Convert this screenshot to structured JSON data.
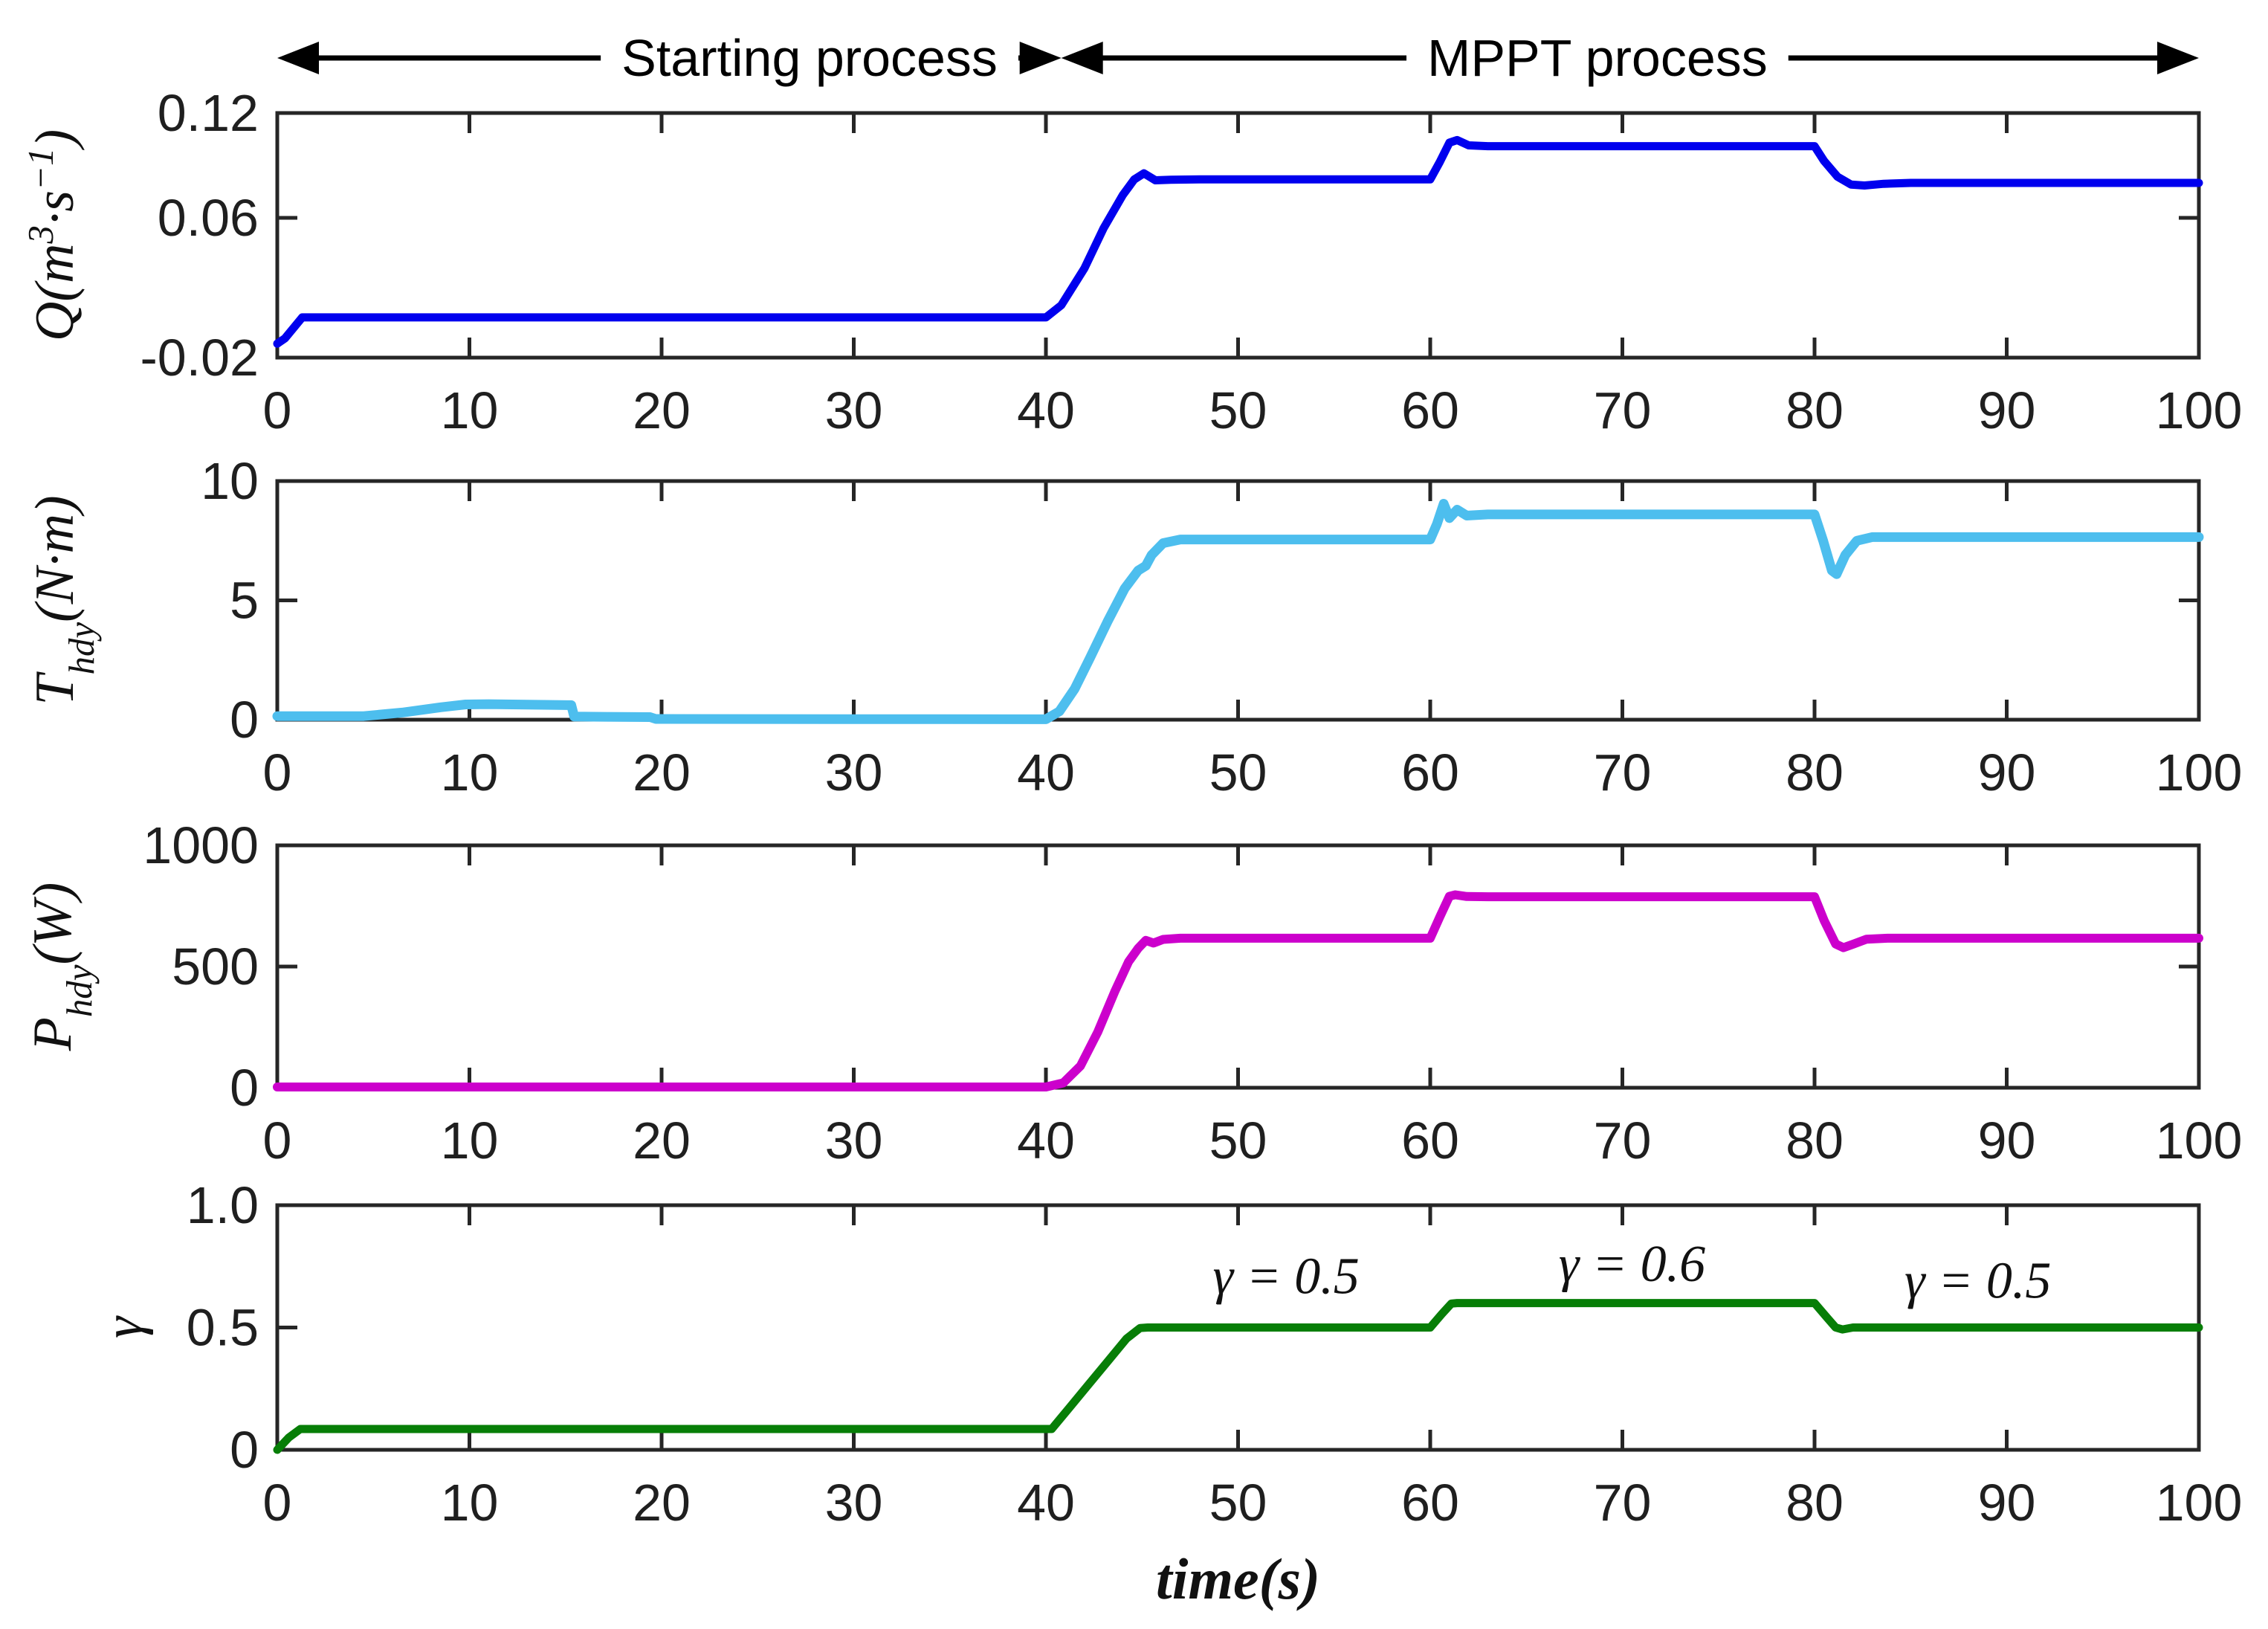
{
  "figure": {
    "background": "#ffffff",
    "axis_color": "#262626",
    "text_color": "#1f1f1f"
  },
  "top_annotations": [
    {
      "text": "Starting process",
      "t_start": 0,
      "t_end": 40.8,
      "text_center_t": 27.7
    },
    {
      "text": "MPPT process",
      "t_start": 40.8,
      "t_end": 100,
      "text_center_t": 68.7
    }
  ],
  "x_axis": {
    "label": "time(s)",
    "range": [
      0,
      100
    ],
    "ticks": [
      0,
      10,
      20,
      30,
      40,
      50,
      60,
      70,
      80,
      90,
      100
    ]
  },
  "chart_data": [
    {
      "type": "line",
      "id": "flow-rate",
      "ylabel": "Q(m^{3}·s^{−1})",
      "color": "#0000EE",
      "line_width": 11,
      "ylim": [
        -0.02,
        0.12
      ],
      "yticks": [
        {
          "v": 0.12,
          "label": "0.12"
        },
        {
          "v": 0.06,
          "label": "0.06"
        },
        {
          "v": -0.02,
          "label": "-0.02"
        }
      ],
      "points": [
        [
          0,
          -0.012
        ],
        [
          0.4,
          -0.009
        ],
        [
          1.3,
          0.003
        ],
        [
          40,
          0.003
        ],
        [
          40.8,
          0.01
        ],
        [
          42,
          0.031
        ],
        [
          43,
          0.054
        ],
        [
          44,
          0.073
        ],
        [
          44.6,
          0.082
        ],
        [
          45.1,
          0.0855
        ],
        [
          45.7,
          0.0815
        ],
        [
          46.5,
          0.0818
        ],
        [
          48,
          0.082
        ],
        [
          60,
          0.082
        ],
        [
          60.5,
          0.092
        ],
        [
          61,
          0.103
        ],
        [
          61.4,
          0.1045
        ],
        [
          62,
          0.1015
        ],
        [
          63,
          0.101
        ],
        [
          80,
          0.101
        ],
        [
          80.5,
          0.0925
        ],
        [
          81.2,
          0.0835
        ],
        [
          81.9,
          0.079
        ],
        [
          82.6,
          0.0785
        ],
        [
          83.6,
          0.0795
        ],
        [
          85,
          0.08
        ],
        [
          100,
          0.08
        ]
      ]
    },
    {
      "type": "line",
      "id": "hydraulic-torque",
      "ylabel": "T_{hdy}(N·m)",
      "color": "#4DBEEE",
      "line_width": 13,
      "ylim": [
        0,
        10
      ],
      "yticks": [
        {
          "v": 10,
          "label": "10"
        },
        {
          "v": 5,
          "label": "5"
        },
        {
          "v": 0,
          "label": "0"
        }
      ],
      "points": [
        [
          0,
          0.15
        ],
        [
          4.5,
          0.15
        ],
        [
          6.5,
          0.3
        ],
        [
          8.5,
          0.52
        ],
        [
          9.8,
          0.64
        ],
        [
          11,
          0.65
        ],
        [
          15.3,
          0.61
        ],
        [
          15.45,
          0.13
        ],
        [
          17,
          0.12
        ],
        [
          19.4,
          0.11
        ],
        [
          19.7,
          0.03
        ],
        [
          40,
          0.02
        ],
        [
          40.7,
          0.35
        ],
        [
          41.5,
          1.3
        ],
        [
          42.3,
          2.6
        ],
        [
          43.2,
          4.1
        ],
        [
          44.1,
          5.5
        ],
        [
          44.8,
          6.25
        ],
        [
          45.2,
          6.45
        ],
        [
          45.5,
          6.9
        ],
        [
          46.1,
          7.4
        ],
        [
          47,
          7.55
        ],
        [
          60,
          7.55
        ],
        [
          60.35,
          8.2
        ],
        [
          60.7,
          9.05
        ],
        [
          61.0,
          8.45
        ],
        [
          61.4,
          8.8
        ],
        [
          61.9,
          8.55
        ],
        [
          63,
          8.6
        ],
        [
          80,
          8.6
        ],
        [
          80.45,
          7.5
        ],
        [
          80.9,
          6.25
        ],
        [
          81.15,
          6.1
        ],
        [
          81.6,
          6.9
        ],
        [
          82.2,
          7.5
        ],
        [
          83,
          7.65
        ],
        [
          100,
          7.65
        ]
      ]
    },
    {
      "type": "line",
      "id": "hydraulic-power",
      "ylabel": "P_{hdy}(W)",
      "color": "#CC00CC",
      "line_width": 12,
      "ylim": [
        0,
        1000
      ],
      "yticks": [
        {
          "v": 1000,
          "label": "1000"
        },
        {
          "v": 500,
          "label": "500"
        },
        {
          "v": 0,
          "label": "0"
        }
      ],
      "points": [
        [
          0,
          3
        ],
        [
          40,
          3
        ],
        [
          40.9,
          20
        ],
        [
          41.8,
          90
        ],
        [
          42.7,
          230
        ],
        [
          43.6,
          400
        ],
        [
          44.3,
          520
        ],
        [
          44.8,
          575
        ],
        [
          45.2,
          608
        ],
        [
          45.6,
          597
        ],
        [
          46.1,
          612
        ],
        [
          47,
          617
        ],
        [
          60,
          617
        ],
        [
          60.5,
          705
        ],
        [
          61,
          790
        ],
        [
          61.3,
          796
        ],
        [
          61.9,
          789
        ],
        [
          63,
          788
        ],
        [
          80,
          788
        ],
        [
          80.5,
          690
        ],
        [
          81.1,
          593
        ],
        [
          81.5,
          578
        ],
        [
          82,
          592
        ],
        [
          82.7,
          613
        ],
        [
          83.8,
          617
        ],
        [
          100,
          617
        ]
      ]
    },
    {
      "type": "line",
      "id": "guide-vane-opening",
      "ylabel": "γ",
      "color": "#077E07",
      "line_width": 11,
      "ylim": [
        0,
        1.0
      ],
      "yticks": [
        {
          "v": 1.0,
          "label": "1.0"
        },
        {
          "v": 0.5,
          "label": "0.5"
        },
        {
          "v": 0,
          "label": "0"
        }
      ],
      "points": [
        [
          0,
          0
        ],
        [
          0.6,
          0.05
        ],
        [
          1.2,
          0.085
        ],
        [
          40.3,
          0.085
        ],
        [
          41.2,
          0.17
        ],
        [
          42.2,
          0.265
        ],
        [
          43.2,
          0.36
        ],
        [
          44.2,
          0.455
        ],
        [
          44.9,
          0.498
        ],
        [
          45.3,
          0.5
        ],
        [
          60,
          0.5
        ],
        [
          60.6,
          0.555
        ],
        [
          61.1,
          0.598
        ],
        [
          61.4,
          0.6
        ],
        [
          80,
          0.6
        ],
        [
          80.6,
          0.545
        ],
        [
          81.1,
          0.5
        ],
        [
          81.45,
          0.492
        ],
        [
          82,
          0.5
        ],
        [
          100,
          0.5
        ]
      ],
      "annotations": [
        {
          "text": "γ = 0.5",
          "t": 52.5,
          "y": 0.64
        },
        {
          "text": "γ = 0.6",
          "t": 70.5,
          "y": 0.69
        },
        {
          "text": "γ = 0.5",
          "t": 88.5,
          "y": 0.622
        }
      ]
    }
  ]
}
